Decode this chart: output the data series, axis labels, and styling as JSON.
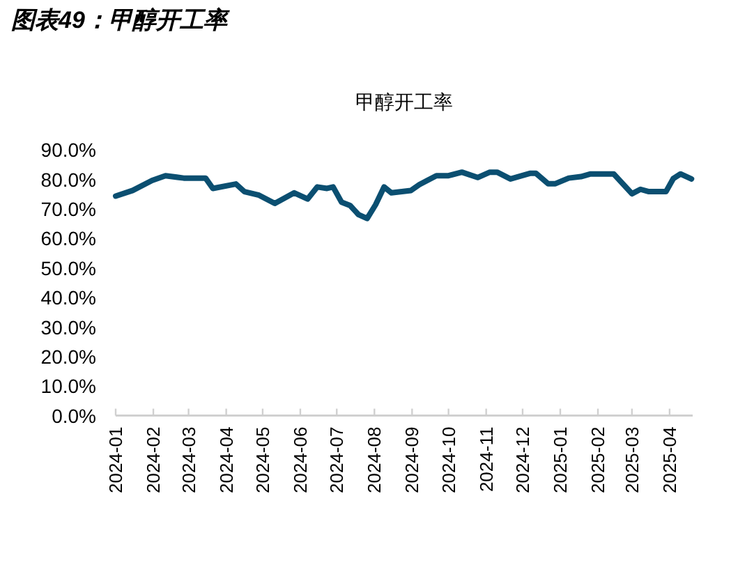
{
  "chart_data": {
    "type": "line",
    "subtitle": "图表49：甲醇开工率",
    "title": "甲醇开工率",
    "x": [
      "2024-01-01",
      "2024-01-15",
      "2024-01-31",
      "2024-02-11",
      "2024-02-26",
      "2024-03-15",
      "2024-03-21",
      "2024-04-09",
      "2024-04-16",
      "2024-04-28",
      "2024-05-11",
      "2024-05-27",
      "2024-06-07",
      "2024-06-15",
      "2024-06-23",
      "2024-06-28",
      "2024-07-05",
      "2024-07-12",
      "2024-07-19",
      "2024-07-26",
      "2024-08-02",
      "2024-08-09",
      "2024-08-15",
      "2024-08-31",
      "2024-09-07",
      "2024-09-21",
      "2024-10-01",
      "2024-10-12",
      "2024-10-25",
      "2024-11-04",
      "2024-11-10",
      "2024-11-21",
      "2024-12-07",
      "2024-12-12",
      "2024-12-22",
      "2024-12-28",
      "2025-01-08",
      "2025-01-18",
      "2025-01-26",
      "2025-02-14",
      "2025-03-01",
      "2025-03-08",
      "2025-03-15",
      "2025-03-29",
      "2025-04-04",
      "2025-04-10",
      "2025-04-19"
    ],
    "series": [
      {
        "color": "#0b4f71",
        "values": [
          74.4,
          76.3,
          79.7,
          81.3,
          80.5,
          80.5,
          77.0,
          78.5,
          75.9,
          74.7,
          71.9,
          75.5,
          73.4,
          77.5,
          77.0,
          77.5,
          72.3,
          71.2,
          68.1,
          66.8,
          71.5,
          77.5,
          75.5,
          76.3,
          78.3,
          81.3,
          81.3,
          82.5,
          80.7,
          82.5,
          82.5,
          80.2,
          82.1,
          82.1,
          78.6,
          78.6,
          80.5,
          81.0,
          81.9,
          81.9,
          75.2,
          76.7,
          75.9,
          75.9,
          80.3,
          81.9,
          80.2
        ]
      }
    ],
    "ylim": [
      0,
      90
    ],
    "yticks": [
      {
        "value": 0,
        "label": "0.0%"
      },
      {
        "value": 10,
        "label": "10.0%"
      },
      {
        "value": 20,
        "label": "20.0%"
      },
      {
        "value": 30,
        "label": "30.0%"
      },
      {
        "value": 40,
        "label": "40.0%"
      },
      {
        "value": 50,
        "label": "50.0%"
      },
      {
        "value": 60,
        "label": "60.0%"
      },
      {
        "value": 70,
        "label": "70.0%"
      },
      {
        "value": 80,
        "label": "80.0%"
      },
      {
        "value": 90,
        "label": "90.0%"
      }
    ],
    "xlim": [
      "2024-01-01",
      "2025-04-20"
    ],
    "xticks": [
      "2024-01",
      "2024-02",
      "2024-03",
      "2024-04",
      "2024-05",
      "2024-06",
      "2024-07",
      "2024-08",
      "2024-09",
      "2024-10",
      "2024-11",
      "2024-12",
      "2025-01",
      "2025-02",
      "2025-03",
      "2025-04"
    ],
    "grid": false,
    "marker": "none",
    "line_style": "solid"
  }
}
